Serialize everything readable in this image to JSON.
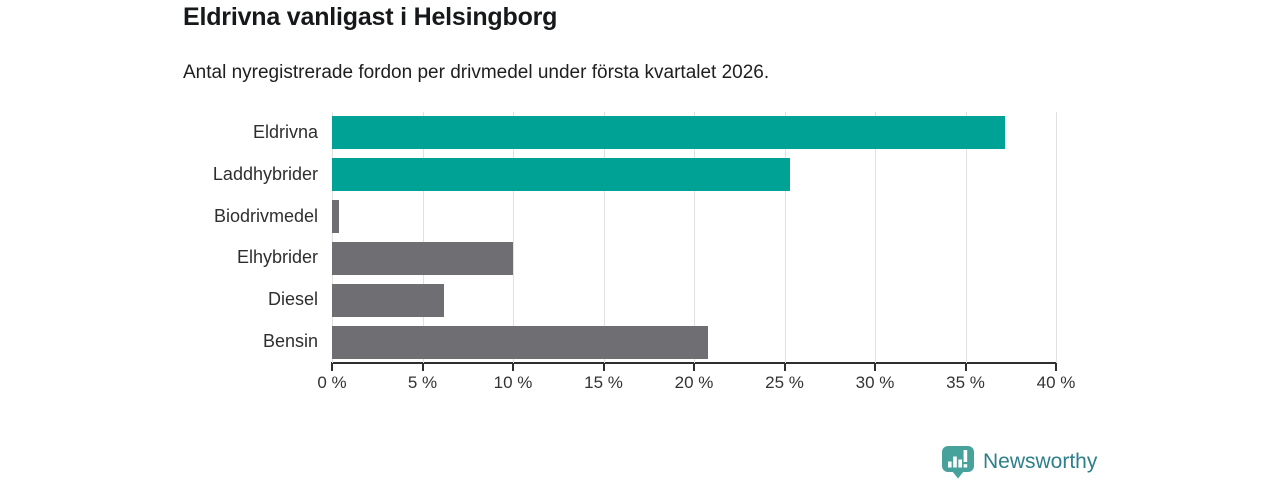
{
  "header": {
    "title": "Eldrivna vanligast i Helsingborg",
    "subtitle": "Antal nyregistrerade fordon per drivmedel under första kvartalet 2026."
  },
  "chart_data": {
    "type": "bar",
    "orientation": "horizontal",
    "title": "Eldrivna vanligast i Helsingborg",
    "subtitle": "Antal nyregistrerade fordon per drivmedel under första kvartalet 2026.",
    "categories": [
      "Eldrivna",
      "Laddhybrider",
      "Biodrivmedel",
      "Elhybrider",
      "Diesel",
      "Bensin"
    ],
    "values": [
      37.2,
      25.3,
      0.4,
      10.0,
      6.2,
      20.8
    ],
    "unit": "%",
    "bar_colors": [
      "#00a296",
      "#00a296",
      "#6e6e73",
      "#6e6e73",
      "#6e6e73",
      "#6e6e73"
    ],
    "highlight_color": "#00a296",
    "default_color": "#6e6e73",
    "xlim": [
      0,
      40
    ],
    "tick_values": [
      0,
      5,
      10,
      15,
      20,
      25,
      30,
      35,
      40
    ],
    "tick_labels": [
      "0 %",
      "5 %",
      "10 %",
      "15 %",
      "20 %",
      "25 %",
      "30 %",
      "35 %",
      "40 %"
    ],
    "grid": true,
    "gridline_color": "#e0e0e0",
    "axis_color": "#2e2e2e",
    "legend_position": "none"
  },
  "branding": {
    "logo_text": "Newsworthy",
    "logo_icon": "newsworthy-bar-chart-pin-icon",
    "icon_color": "#47a29c",
    "text_color": "#2d7f8b"
  }
}
